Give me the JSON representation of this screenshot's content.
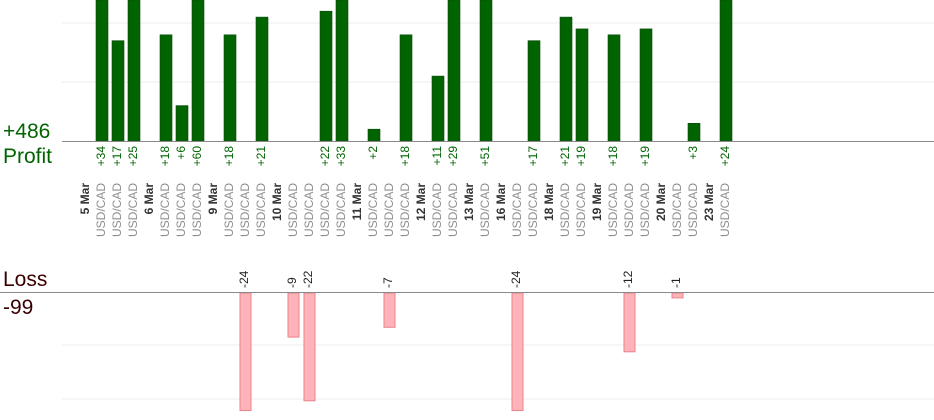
{
  "profit_label": "Profit",
  "profit_total": "+486",
  "loss_label": "Loss",
  "loss_total": "-99",
  "colors": {
    "profit_bar": "#006400",
    "profit_bar_dark": "#0b4a0b",
    "profit_text": "#006400",
    "loss_bar": "#ffb3b8",
    "loss_bar_border": "#e8858d",
    "loss_text": "#3a0000",
    "axis": "#8a8a8a",
    "grid": "#ececec"
  },
  "chart_data": {
    "type": "bar",
    "title": "",
    "xlabel": "",
    "ylabel": "",
    "grid": true,
    "categories": [
      {
        "date": "5 Mar",
        "trades": [
          {
            "pair": "USD/CAD",
            "value": 34
          },
          {
            "pair": "USD/CAD",
            "value": 17
          },
          {
            "pair": "USD/CAD",
            "value": 25
          }
        ]
      },
      {
        "date": "6 Mar",
        "trades": [
          {
            "pair": "USD/CAD",
            "value": 18
          },
          {
            "pair": "USD/CAD",
            "value": 6
          },
          {
            "pair": "USD/CAD",
            "value": 60
          }
        ]
      },
      {
        "date": "9 Mar",
        "trades": [
          {
            "pair": "USD/CAD",
            "value": 18
          },
          {
            "pair": "USD/CAD",
            "value": -24
          },
          {
            "pair": "USD/CAD",
            "value": 21
          }
        ]
      },
      {
        "date": "10 Mar",
        "trades": [
          {
            "pair": "USD/CAD",
            "value": -9
          },
          {
            "pair": "USD/CAD",
            "value": -22
          },
          {
            "pair": "USD/CAD",
            "value": 22
          },
          {
            "pair": "USD/CAD",
            "value": 33
          }
        ]
      },
      {
        "date": "11 Mar",
        "trades": [
          {
            "pair": "USD/CAD",
            "value": 2
          },
          {
            "pair": "USD/CAD",
            "value": -7
          },
          {
            "pair": "USD/CAD",
            "value": 18
          }
        ]
      },
      {
        "date": "12 Mar",
        "trades": [
          {
            "pair": "USD/CAD",
            "value": 11
          },
          {
            "pair": "USD/CAD",
            "value": 29
          }
        ]
      },
      {
        "date": "13 Mar",
        "trades": [
          {
            "pair": "USD/CAD",
            "value": 51
          }
        ]
      },
      {
        "date": "16 Mar",
        "trades": [
          {
            "pair": "USD/CAD",
            "value": -24
          },
          {
            "pair": "USD/CAD",
            "value": 17
          }
        ]
      },
      {
        "date": "18 Mar",
        "trades": [
          {
            "pair": "USD/CAD",
            "value": 21
          },
          {
            "pair": "USD/CAD",
            "value": 19
          }
        ]
      },
      {
        "date": "19 Mar",
        "trades": [
          {
            "pair": "USD/CAD",
            "value": 18
          },
          {
            "pair": "USD/CAD",
            "value": -12
          },
          {
            "pair": "USD/CAD",
            "value": 19
          }
        ]
      },
      {
        "date": "20 Mar",
        "trades": [
          {
            "pair": "USD/CAD",
            "value": -1
          },
          {
            "pair": "USD/CAD",
            "value": 3
          }
        ]
      },
      {
        "date": "23 Mar",
        "trades": [
          {
            "pair": "USD/CAD",
            "value": 24
          }
        ]
      }
    ],
    "profit_axis_range": [
      0,
      24
    ],
    "loss_axis_range": [
      -24,
      0
    ]
  }
}
